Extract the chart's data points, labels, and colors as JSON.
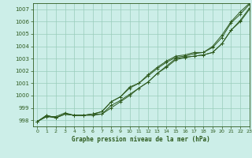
{
  "title": "Graphe pression niveau de la mer (hPa)",
  "bg_color": "#cceee8",
  "grid_color": "#99ccbb",
  "line_color": "#2d5a1e",
  "xlim": [
    -0.5,
    23
  ],
  "ylim": [
    997.5,
    1007.5
  ],
  "yticks": [
    998,
    999,
    1000,
    1001,
    1002,
    1003,
    1004,
    1005,
    1006,
    1007
  ],
  "xticks": [
    0,
    1,
    2,
    3,
    4,
    5,
    6,
    7,
    8,
    9,
    10,
    11,
    12,
    13,
    14,
    15,
    16,
    17,
    18,
    19,
    20,
    21,
    22,
    23
  ],
  "series": [
    [
      997.9,
      998.3,
      998.3,
      998.6,
      998.4,
      998.4,
      998.5,
      998.5,
      999.2,
      999.6,
      1000.1,
      1000.6,
      1001.1,
      1001.8,
      1002.4,
      1003.0,
      1003.1,
      1003.2,
      1003.3,
      1003.5,
      1004.2,
      1005.3,
      1006.1,
      1007.1
    ],
    [
      997.9,
      998.3,
      998.2,
      998.5,
      998.4,
      998.4,
      998.4,
      998.5,
      999.0,
      999.5,
      1000.0,
      1000.6,
      1001.1,
      1001.8,
      1002.3,
      1002.9,
      1003.1,
      1003.2,
      1003.3,
      1003.5,
      1004.2,
      1005.3,
      1006.0,
      1007.0
    ],
    [
      997.9,
      998.4,
      998.2,
      998.5,
      998.4,
      998.4,
      998.5,
      998.7,
      999.5,
      999.9,
      1000.6,
      1001.0,
      1001.6,
      1002.2,
      1002.7,
      1003.1,
      1003.2,
      1003.4,
      1003.5,
      1003.9,
      1004.7,
      1005.9,
      1006.6,
      1007.4
    ],
    [
      997.9,
      998.4,
      998.2,
      998.5,
      998.4,
      998.4,
      998.5,
      998.7,
      999.5,
      999.9,
      1000.7,
      1001.0,
      1001.7,
      1002.3,
      1002.8,
      1003.2,
      1003.3,
      1003.5,
      1003.5,
      1004.0,
      1004.9,
      1006.0,
      1006.8,
      1007.5
    ]
  ]
}
